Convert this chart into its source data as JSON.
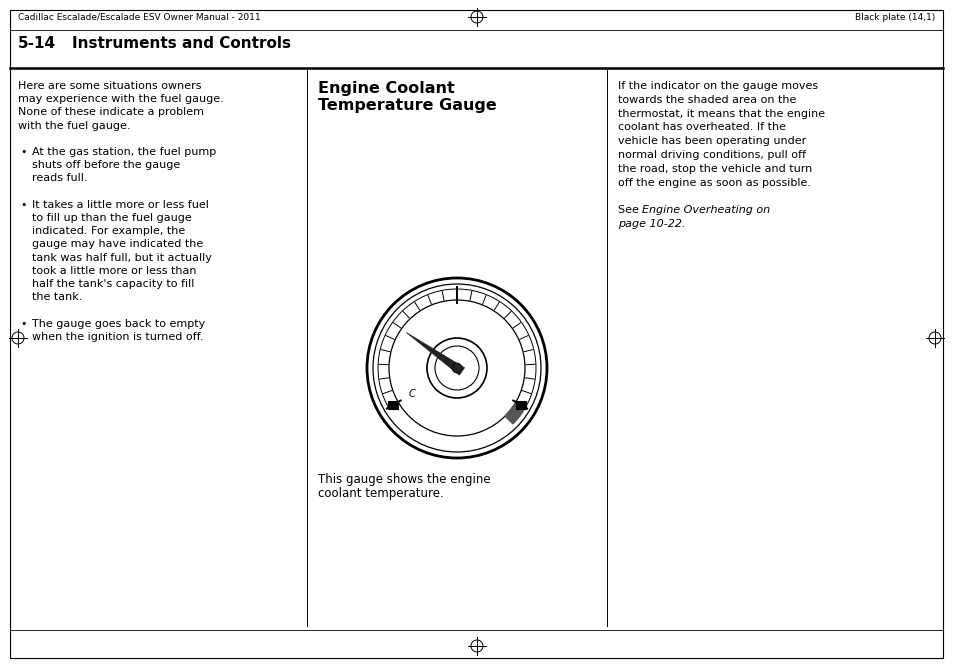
{
  "page_bg": "#ffffff",
  "header_left": "Cadillac Escalade/Escalade ESV Owner Manual - 2011",
  "header_right": "Black plate (14,1)",
  "col1_text_lines": [
    "Here are some situations owners",
    "may experience with the fuel gauge.",
    "None of these indicate a problem",
    "with the fuel gauge.",
    "",
    "BULLET:At the gas station, the fuel pump",
    "INDENT:shuts off before the gauge",
    "INDENT:reads full.",
    "",
    "BULLET:It takes a little more or less fuel",
    "INDENT:to fill up than the fuel gauge",
    "INDENT:indicated. For example, the",
    "INDENT:gauge may have indicated the",
    "INDENT:tank was half full, but it actually",
    "INDENT:took a little more or less than",
    "INDENT:half the tank's capacity to fill",
    "INDENT:the tank.",
    "",
    "BULLET:The gauge goes back to empty",
    "INDENT:when the ignition is turned off."
  ],
  "col2_heading1": "Engine Coolant",
  "col2_heading2": "Temperature Gauge",
  "col2_caption1": "This gauge shows the engine",
  "col2_caption2": "coolant temperature.",
  "col3_text_lines": [
    "If the indicator on the gauge moves",
    "towards the shaded area on the",
    "thermostat, it means that the engine",
    "coolant has overheated. If the",
    "vehicle has been operating under",
    "normal driving conditions, pull off",
    "the road, stop the vehicle and turn",
    "off the engine as soon as possible.",
    "",
    "SEE:See |Engine Overheating on",
    "SEEPAGE:page 10-22."
  ],
  "section_num": "5-14",
  "section_title": "Instruments and Controls"
}
